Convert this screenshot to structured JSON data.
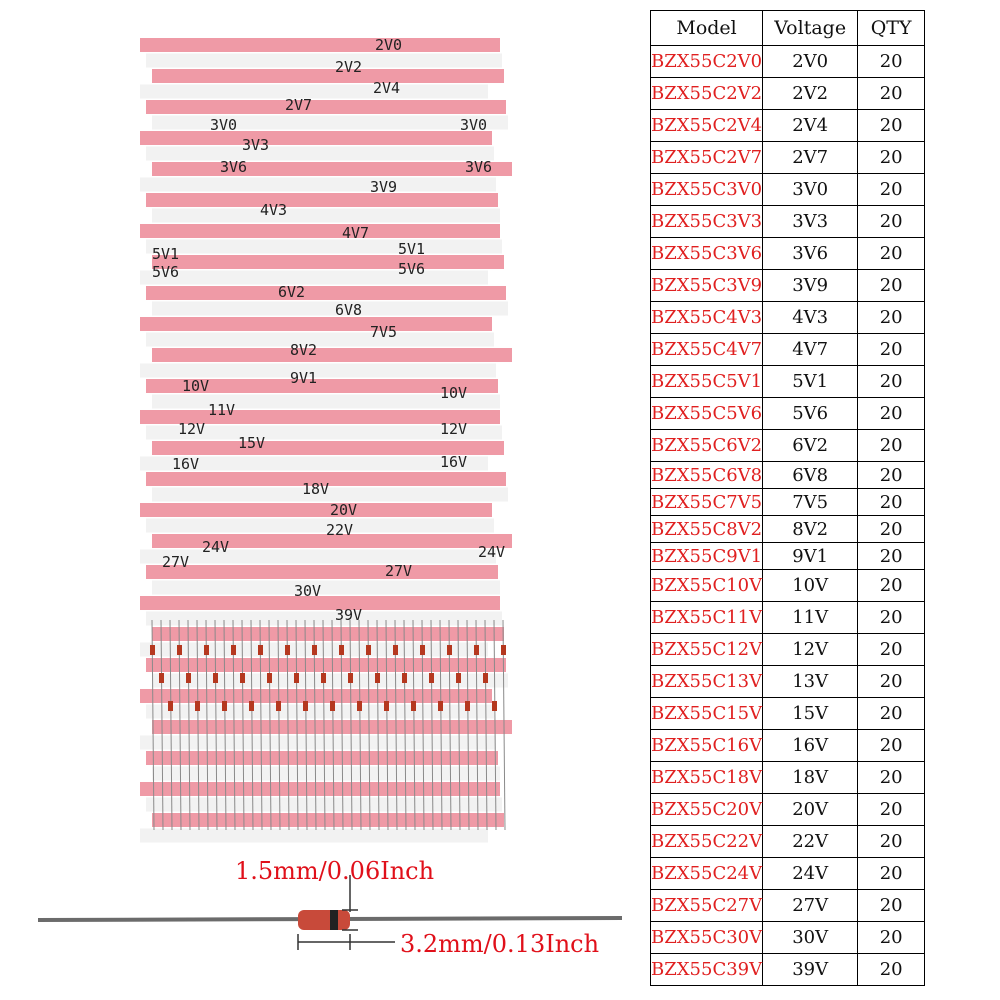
{
  "colors": {
    "model_text": "#e02020",
    "tape_red": "#ef9aa6",
    "tape_white": "#f2f2f2",
    "dimension_text": "#e0101a"
  },
  "photo": {
    "tape_labels": [
      "2V0",
      "2V2",
      "2V4",
      "2V7",
      "3V0",
      "3V0",
      "3V3",
      "3V6",
      "3V6",
      "3V9",
      "4V3",
      "4V7",
      "5V1",
      "5V1",
      "5V6",
      "5V6",
      "6V2",
      "6V8",
      "7V5",
      "8V2",
      "9V1",
      "10V",
      "10V",
      "11V",
      "12V",
      "12V",
      "15V",
      "16V",
      "16V",
      "18V",
      "20V",
      "22V",
      "24V",
      "24V",
      "27V",
      "27V",
      "30V",
      "39V"
    ]
  },
  "dimensions": {
    "width_label": "1.5mm/0.06Inch",
    "length_label": "3.2mm/0.13Inch"
  },
  "chart_data": {
    "type": "table",
    "columns": [
      "Model",
      "Voltage",
      "QTY"
    ],
    "rows": [
      [
        "BZX55C2V0",
        "2V0",
        "20"
      ],
      [
        "BZX55C2V2",
        "2V2",
        "20"
      ],
      [
        "BZX55C2V4",
        "2V4",
        "20"
      ],
      [
        "BZX55C2V7",
        "2V7",
        "20"
      ],
      [
        "BZX55C3V0",
        "3V0",
        "20"
      ],
      [
        "BZX55C3V3",
        "3V3",
        "20"
      ],
      [
        "BZX55C3V6",
        "3V6",
        "20"
      ],
      [
        "BZX55C3V9",
        "3V9",
        "20"
      ],
      [
        "BZX55C4V3",
        "4V3",
        "20"
      ],
      [
        "BZX55C4V7",
        "4V7",
        "20"
      ],
      [
        "BZX55C5V1",
        "5V1",
        "20"
      ],
      [
        "BZX55C5V6",
        "5V6",
        "20"
      ],
      [
        "BZX55C6V2",
        "6V2",
        "20"
      ],
      [
        "BZX55C6V8",
        "6V8",
        "20"
      ],
      [
        "BZX55C7V5",
        "7V5",
        "20"
      ],
      [
        "BZX55C8V2",
        "8V2",
        "20"
      ],
      [
        "BZX55C9V1",
        "9V1",
        "20"
      ],
      [
        "BZX55C10V",
        "10V",
        "20"
      ],
      [
        "BZX55C11V",
        "11V",
        "20"
      ],
      [
        "BZX55C12V",
        "12V",
        "20"
      ],
      [
        "BZX55C13V",
        "13V",
        "20"
      ],
      [
        "BZX55C15V",
        "15V",
        "20"
      ],
      [
        "BZX55C16V",
        "16V",
        "20"
      ],
      [
        "BZX55C18V",
        "18V",
        "20"
      ],
      [
        "BZX55C20V",
        "20V",
        "20"
      ],
      [
        "BZX55C22V",
        "22V",
        "20"
      ],
      [
        "BZX55C24V",
        "24V",
        "20"
      ],
      [
        "BZX55C27V",
        "27V",
        "20"
      ],
      [
        "BZX55C30V",
        "30V",
        "20"
      ],
      [
        "BZX55C39V",
        "39V",
        "20"
      ]
    ]
  }
}
